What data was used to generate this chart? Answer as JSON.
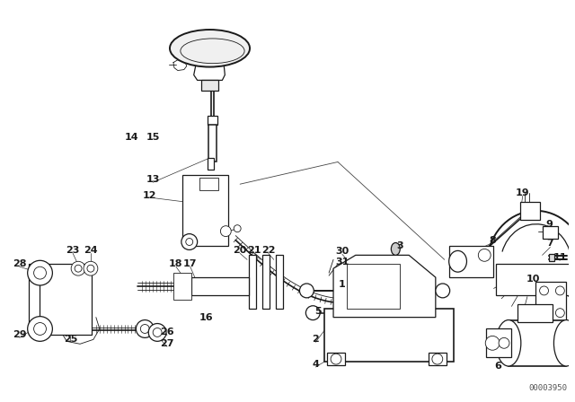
{
  "bg_color": "#ffffff",
  "line_color": "#1a1a1a",
  "watermark": "00003950",
  "fig_w": 6.4,
  "fig_h": 4.48,
  "dpi": 100
}
